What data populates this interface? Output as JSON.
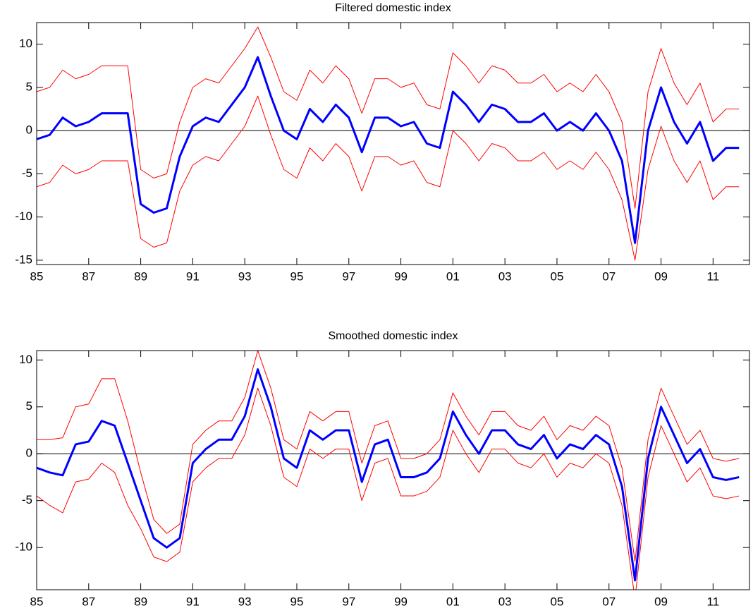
{
  "chart_data": [
    {
      "type": "line",
      "title": "Filtered domestic index",
      "x": [
        1985,
        1985.5,
        1986,
        1986.5,
        1987,
        1987.5,
        1988,
        1988.5,
        1989,
        1989.5,
        1990,
        1990.5,
        1991,
        1991.5,
        1992,
        1992.5,
        1993,
        1993.5,
        1994,
        1994.5,
        1995,
        1995.5,
        1996,
        1996.5,
        1997,
        1997.5,
        1998,
        1998.5,
        1999,
        1999.5,
        2000,
        2000.5,
        2001,
        2001.5,
        2002,
        2002.5,
        2003,
        2003.5,
        2004,
        2004.5,
        2005,
        2005.5,
        2006,
        2006.5,
        2007,
        2007.5,
        2008,
        2008.5,
        2009,
        2009.5,
        2010,
        2010.5,
        2011,
        2011.5,
        2012
      ],
      "series": [
        {
          "color": "#ff0000",
          "width": 1,
          "values": [
            4.5,
            5,
            7,
            6,
            6.5,
            7.5,
            7.5,
            7.5,
            -4.5,
            -5.5,
            -5,
            1,
            5,
            6,
            5.5,
            7.5,
            9.5,
            12,
            8.5,
            4.5,
            3.5,
            7,
            5.5,
            7.5,
            6,
            2,
            6,
            6,
            5,
            5.5,
            3,
            2.5,
            9,
            7.5,
            5.5,
            7.5,
            7,
            5.5,
            5.5,
            6.5,
            4.5,
            5.5,
            4.5,
            6.5,
            4.5,
            1,
            -9,
            4.5,
            9.5,
            5.5,
            3,
            5.5,
            1,
            2.5,
            2.5
          ]
        },
        {
          "color": "#ff0000",
          "width": 1,
          "values": [
            -6.5,
            -6,
            -4,
            -5,
            -4.5,
            -3.5,
            -3.5,
            -3.5,
            -12.5,
            -13.5,
            -13,
            -7,
            -4,
            -3,
            -3.5,
            -1.5,
            0.5,
            4,
            -0.5,
            -4.5,
            -5.5,
            -2,
            -3.5,
            -1.5,
            -3,
            -7,
            -3,
            -3,
            -4,
            -3.5,
            -6,
            -6.5,
            0,
            -1.5,
            -3.5,
            -1.5,
            -2,
            -3.5,
            -3.5,
            -2.5,
            -4.5,
            -3.5,
            -4.5,
            -2.5,
            -4.5,
            -8,
            -15,
            -4.5,
            0.5,
            -3.5,
            -6,
            -3.5,
            -8,
            -6.5,
            -6.5
          ]
        },
        {
          "color": "#0000ff",
          "width": 3,
          "values": [
            -1,
            -0.5,
            1.5,
            0.5,
            1,
            2,
            2,
            2,
            -8.5,
            -9.5,
            -9,
            -3,
            0.5,
            1.5,
            1,
            3,
            5,
            8.5,
            4,
            0,
            -1,
            2.5,
            1,
            3,
            1.5,
            -2.5,
            1.5,
            1.5,
            0.5,
            1,
            -1.5,
            -2,
            4.5,
            3,
            1,
            3,
            2.5,
            1,
            1,
            2,
            0,
            1,
            0,
            2,
            0,
            -3.5,
            -13,
            0,
            5,
            1,
            -1.5,
            1,
            -3.5,
            -2,
            -2
          ]
        }
      ],
      "xlim": [
        1985,
        2012.4
      ],
      "xticks": [
        {
          "value": 1985,
          "label": "85"
        },
        {
          "value": 1987,
          "label": "87"
        },
        {
          "value": 1989,
          "label": "89"
        },
        {
          "value": 1991,
          "label": "91"
        },
        {
          "value": 1993,
          "label": "93"
        },
        {
          "value": 1995,
          "label": "95"
        },
        {
          "value": 1997,
          "label": "97"
        },
        {
          "value": 1999,
          "label": "99"
        },
        {
          "value": 2001,
          "label": "01"
        },
        {
          "value": 2003,
          "label": "03"
        },
        {
          "value": 2005,
          "label": "05"
        },
        {
          "value": 2007,
          "label": "07"
        },
        {
          "value": 2009,
          "label": "09"
        },
        {
          "value": 2011,
          "label": "11"
        }
      ],
      "ylim": [
        -15.5,
        12.5
      ],
      "yticks": [
        -15,
        -10,
        -5,
        0,
        5,
        10
      ]
    },
    {
      "type": "line",
      "title": "Smoothed domestic index",
      "x": [
        1985,
        1985.5,
        1986,
        1986.5,
        1987,
        1987.5,
        1988,
        1988.5,
        1989,
        1989.5,
        1990,
        1990.5,
        1991,
        1991.5,
        1992,
        1992.5,
        1993,
        1993.5,
        1994,
        1994.5,
        1995,
        1995.5,
        1996,
        1996.5,
        1997,
        1997.5,
        1998,
        1998.5,
        1999,
        1999.5,
        2000,
        2000.5,
        2001,
        2001.5,
        2002,
        2002.5,
        2003,
        2003.5,
        2004,
        2004.5,
        2005,
        2005.5,
        2006,
        2006.5,
        2007,
        2007.5,
        2008,
        2008.5,
        2009,
        2009.5,
        2010,
        2010.5,
        2011,
        2011.5,
        2012
      ],
      "series": [
        {
          "color": "#ff0000",
          "width": 1,
          "values": [
            1.5,
            1.5,
            1.7,
            5,
            5.3,
            8,
            8,
            3.5,
            -2,
            -7,
            -8.5,
            -7.5,
            1,
            2.5,
            3.5,
            3.5,
            6,
            11,
            7,
            1.5,
            0.5,
            4.5,
            3.5,
            4.5,
            4.5,
            -1,
            3,
            3.5,
            -0.5,
            -0.5,
            0,
            1.5,
            6.5,
            4,
            2,
            4.5,
            4.5,
            3,
            2.5,
            4,
            1.5,
            3,
            2.5,
            4,
            3,
            -1.5,
            -11.5,
            1.5,
            7,
            4,
            1,
            2.5,
            -0.5,
            -0.8,
            -0.5
          ]
        },
        {
          "color": "#ff0000",
          "width": 1,
          "values": [
            -4.5,
            -5.5,
            -6.3,
            -3,
            -2.7,
            -1,
            -2,
            -5.5,
            -8,
            -11,
            -11.5,
            -10.5,
            -3,
            -1.5,
            -0.5,
            -0.5,
            2,
            7,
            3,
            -2.5,
            -3.5,
            0.5,
            -0.5,
            0.5,
            0.5,
            -5,
            -1,
            -0.5,
            -4.5,
            -4.5,
            -4,
            -2.5,
            2.5,
            0,
            -2,
            0.5,
            0.5,
            -1,
            -1.5,
            0,
            -2.5,
            -1,
            -1.5,
            0,
            -1,
            -5.5,
            -15.5,
            -2.5,
            3,
            0,
            -3,
            -1.5,
            -4.5,
            -4.8,
            -4.5
          ]
        },
        {
          "color": "#0000ff",
          "width": 3,
          "values": [
            -1.5,
            -2,
            -2.3,
            1,
            1.3,
            3.5,
            3,
            -1,
            -5,
            -9,
            -10,
            -9,
            -1,
            0.5,
            1.5,
            1.5,
            4,
            9,
            5,
            -0.5,
            -1.5,
            2.5,
            1.5,
            2.5,
            2.5,
            -3,
            1,
            1.5,
            -2.5,
            -2.5,
            -2,
            -0.5,
            4.5,
            2,
            0,
            2.5,
            2.5,
            1,
            0.5,
            2,
            -0.5,
            1,
            0.5,
            2,
            1,
            -3.5,
            -13.5,
            -0.5,
            5,
            2,
            -1,
            0.5,
            -2.5,
            -2.8,
            -2.5
          ]
        }
      ],
      "xlim": [
        1985,
        2012.4
      ],
      "xticks": [
        {
          "value": 1985,
          "label": "85"
        },
        {
          "value": 1987,
          "label": "87"
        },
        {
          "value": 1989,
          "label": "89"
        },
        {
          "value": 1991,
          "label": "91"
        },
        {
          "value": 1993,
          "label": "93"
        },
        {
          "value": 1995,
          "label": "95"
        },
        {
          "value": 1997,
          "label": "97"
        },
        {
          "value": 1999,
          "label": "99"
        },
        {
          "value": 2001,
          "label": "01"
        },
        {
          "value": 2003,
          "label": "03"
        },
        {
          "value": 2005,
          "label": "05"
        },
        {
          "value": 2007,
          "label": "07"
        },
        {
          "value": 2009,
          "label": "09"
        },
        {
          "value": 2011,
          "label": "11"
        }
      ],
      "ylim": [
        -14.5,
        11
      ],
      "yticks": [
        -10,
        -5,
        0,
        5,
        10
      ]
    }
  ]
}
